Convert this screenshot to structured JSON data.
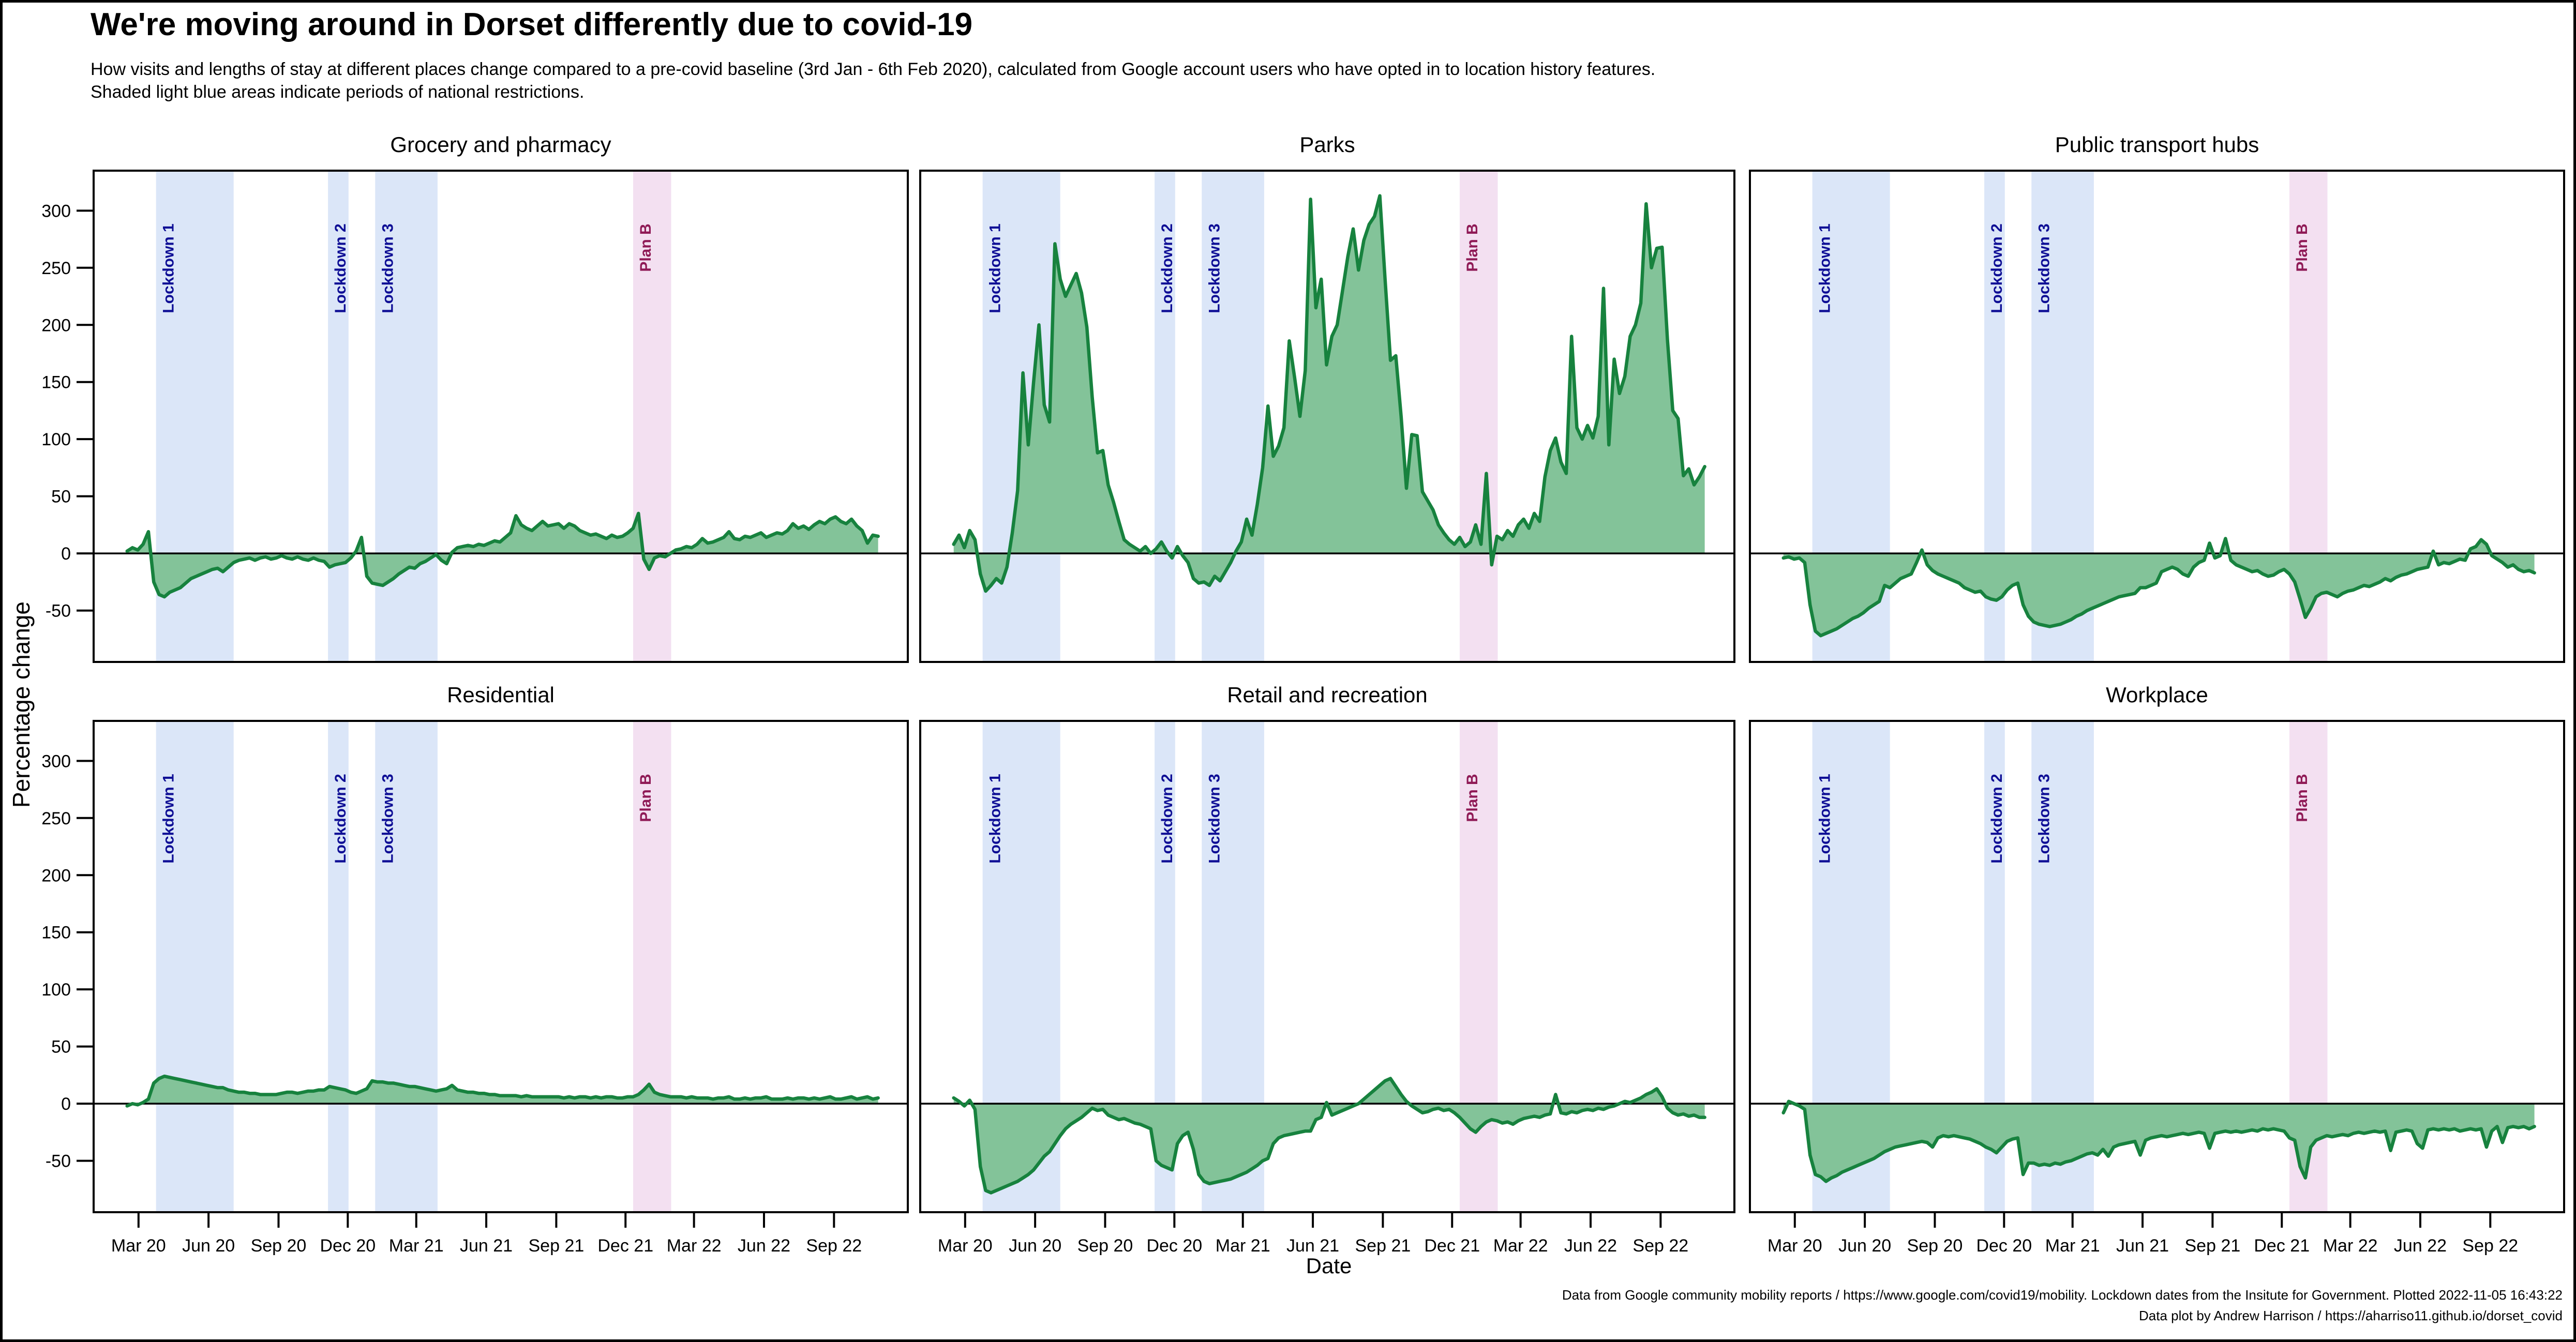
{
  "header": {
    "title": "We're moving around in Dorset differently due to covid-19",
    "subtitle_line1": "How visits and lengths of stay at different places change compared to a pre-covid baseline (3rd Jan - 6th Feb 2020), calculated from Google account users who have opted in to location history features.",
    "subtitle_line2": "Shaded light blue areas indicate periods of national restrictions."
  },
  "axes": {
    "y_label": "Percentage change",
    "x_label": "Date",
    "y_ticks": [
      300,
      250,
      200,
      150,
      100,
      50,
      0,
      -50
    ],
    "y_domain": [
      -95,
      335
    ],
    "x_domain_days": [
      -44,
      1026
    ],
    "x_ticks": [
      {
        "label": "Mar 20",
        "day": 15
      },
      {
        "label": "Jun 20",
        "day": 107
      },
      {
        "label": "Sep 20",
        "day": 199
      },
      {
        "label": "Dec 20",
        "day": 290
      },
      {
        "label": "Mar 21",
        "day": 380
      },
      {
        "label": "Jun 21",
        "day": 472
      },
      {
        "label": "Sep 21",
        "day": 564
      },
      {
        "label": "Dec 21",
        "day": 655
      },
      {
        "label": "Mar 22",
        "day": 745
      },
      {
        "label": "Jun 22",
        "day": 837
      },
      {
        "label": "Sep 22",
        "day": 929
      }
    ]
  },
  "bands": [
    {
      "label": "Lockdown 1",
      "start_day": 38,
      "end_day": 140,
      "kind": "lockdown"
    },
    {
      "label": "Lockdown 2",
      "start_day": 264,
      "end_day": 291,
      "kind": "lockdown"
    },
    {
      "label": "Lockdown 3",
      "start_day": 326,
      "end_day": 408,
      "kind": "lockdown"
    },
    {
      "label": "Plan B",
      "start_day": 665,
      "end_day": 715,
      "kind": "planb"
    }
  ],
  "colors": {
    "line": "#17823e",
    "area_fill": "#83c399",
    "band_lockdown": "#dbe6f8",
    "band_planb": "#f3e0f1",
    "lockdown_label": "#0e0e95",
    "planb_label": "#8f1a56",
    "axis": "#000000"
  },
  "footer": {
    "line1": "Data from Google community mobility reports / https://www.google.com/covid19/mobility. Lockdown dates from the Insitute for Government. Plotted 2022-11-05 16:43:22",
    "line2": "Data plot by Andrew Harrison / https://aharriso11.github.io/dorset_covid"
  },
  "chart_data": {
    "type": "area",
    "x_unit": "days since first sample (mid-Feb 2020), axis labelled by month",
    "grid": false,
    "baseline": 0,
    "days": [
      0,
      7,
      14,
      21,
      28,
      35,
      42,
      49,
      56,
      63,
      70,
      77,
      84,
      91,
      98,
      105,
      112,
      119,
      126,
      133,
      140,
      147,
      154,
      161,
      168,
      175,
      182,
      189,
      196,
      203,
      210,
      217,
      224,
      231,
      238,
      245,
      252,
      259,
      266,
      273,
      280,
      287,
      294,
      301,
      308,
      315,
      322,
      329,
      336,
      343,
      350,
      357,
      364,
      371,
      378,
      385,
      392,
      399,
      406,
      413,
      420,
      427,
      434,
      441,
      448,
      455,
      462,
      469,
      476,
      483,
      490,
      497,
      504,
      511,
      518,
      525,
      532,
      539,
      546,
      553,
      560,
      567,
      574,
      581,
      588,
      595,
      602,
      609,
      616,
      623,
      630,
      637,
      644,
      651,
      658,
      665,
      672,
      679,
      686,
      693,
      700,
      707,
      714,
      721,
      728,
      735,
      742,
      749,
      756,
      763,
      770,
      777,
      784,
      791,
      798,
      805,
      812,
      819,
      826,
      833,
      840,
      847,
      854,
      861,
      868,
      875,
      882,
      889,
      896,
      903,
      910,
      917,
      924,
      931,
      938,
      945,
      952,
      959,
      966,
      973,
      980,
      987
    ],
    "panels": [
      {
        "title": "Grocery and pharmacy",
        "values": [
          2,
          5,
          3,
          8,
          19,
          -25,
          -36,
          -38,
          -34,
          -32,
          -30,
          -26,
          -22,
          -20,
          -18,
          -16,
          -14,
          -13,
          -16,
          -12,
          -8,
          -6,
          -5,
          -4,
          -6,
          -4,
          -3,
          -5,
          -4,
          -2,
          -4,
          -5,
          -3,
          -5,
          -6,
          -4,
          -6,
          -7,
          -12,
          -10,
          -9,
          -8,
          -4,
          2,
          14,
          -20,
          -26,
          -27,
          -28,
          -25,
          -22,
          -18,
          -15,
          -12,
          -13,
          -9,
          -7,
          -4,
          -1,
          -6,
          -9,
          1,
          5,
          6,
          7,
          6,
          8,
          7,
          9,
          11,
          10,
          14,
          18,
          33,
          25,
          22,
          20,
          24,
          28,
          24,
          25,
          26,
          22,
          26,
          24,
          20,
          18,
          16,
          17,
          15,
          13,
          16,
          14,
          15,
          18,
          22,
          35,
          -5,
          -14,
          -4,
          -2,
          -3,
          0,
          3,
          4,
          6,
          5,
          8,
          13,
          9,
          10,
          12,
          14,
          19,
          13,
          12,
          15,
          14,
          16,
          18,
          14,
          16,
          18,
          17,
          20,
          26,
          22,
          24,
          21,
          25,
          28,
          26,
          30,
          32,
          28,
          26,
          30,
          24,
          20,
          9,
          16,
          15
        ]
      },
      {
        "title": "Parks",
        "values": [
          8,
          16,
          5,
          20,
          12,
          -18,
          -33,
          -28,
          -22,
          -26,
          -12,
          18,
          55,
          158,
          95,
          150,
          200,
          130,
          115,
          271,
          240,
          225,
          235,
          245,
          228,
          198,
          137,
          88,
          90,
          60,
          45,
          28,
          12,
          8,
          5,
          2,
          6,
          0,
          4,
          10,
          2,
          -4,
          6,
          -2,
          -8,
          -22,
          -26,
          -25,
          -28,
          -20,
          -24,
          -16,
          -8,
          2,
          10,
          30,
          16,
          43,
          75,
          129,
          85,
          94,
          110,
          186,
          154,
          120,
          160,
          310,
          215,
          240,
          165,
          190,
          200,
          230,
          260,
          284,
          248,
          274,
          288,
          295,
          313,
          239,
          169,
          173,
          120,
          57,
          104,
          103,
          54,
          46,
          38,
          25,
          18,
          12,
          8,
          14,
          6,
          10,
          25,
          8,
          70,
          -10,
          15,
          12,
          20,
          15,
          25,
          30,
          22,
          35,
          28,
          67,
          90,
          101,
          80,
          70,
          190,
          110,
          100,
          112,
          101,
          120,
          232,
          95,
          170,
          140,
          155,
          190,
          200,
          219,
          306,
          250,
          267,
          268,
          187,
          125,
          118,
          68,
          74,
          60,
          67,
          76
        ]
      },
      {
        "title": "Public transport hubs",
        "values": [
          -4,
          -3,
          -5,
          -4,
          -8,
          -45,
          -68,
          -72,
          -70,
          -68,
          -66,
          -63,
          -60,
          -57,
          -55,
          -52,
          -48,
          -45,
          -42,
          -28,
          -30,
          -26,
          -22,
          -20,
          -18,
          -8,
          3,
          -10,
          -15,
          -18,
          -20,
          -22,
          -24,
          -26,
          -30,
          -32,
          -34,
          -33,
          -38,
          -40,
          -41,
          -38,
          -32,
          -28,
          -26,
          -45,
          -55,
          -60,
          -62,
          -63,
          -64,
          -63,
          -62,
          -60,
          -58,
          -55,
          -53,
          -50,
          -48,
          -46,
          -44,
          -42,
          -40,
          -38,
          -37,
          -36,
          -35,
          -30,
          -30,
          -28,
          -26,
          -16,
          -14,
          -12,
          -14,
          -18,
          -20,
          -12,
          -8,
          -6,
          9,
          -4,
          -2,
          13,
          -6,
          -10,
          -12,
          -14,
          -16,
          -15,
          -18,
          -20,
          -19,
          -16,
          -14,
          -18,
          -25,
          -40,
          -56,
          -48,
          -38,
          -35,
          -34,
          -36,
          -38,
          -35,
          -33,
          -32,
          -30,
          -28,
          -29,
          -27,
          -25,
          -22,
          -24,
          -21,
          -19,
          -18,
          -16,
          -14,
          -13,
          -12,
          2,
          -10,
          -8,
          -9,
          -7,
          -5,
          -6,
          4,
          6,
          12,
          8,
          -2,
          -5,
          -8,
          -12,
          -10,
          -14,
          -16,
          -15,
          -17
        ]
      },
      {
        "title": "Residential",
        "values": [
          -2,
          0,
          -1,
          1,
          4,
          18,
          22,
          24,
          23,
          22,
          21,
          20,
          19,
          18,
          17,
          16,
          15,
          14,
          14,
          12,
          11,
          10,
          10,
          9,
          9,
          8,
          8,
          8,
          8,
          9,
          10,
          10,
          9,
          10,
          11,
          11,
          12,
          12,
          15,
          14,
          13,
          12,
          10,
          9,
          11,
          13,
          20,
          19,
          19,
          18,
          18,
          17,
          16,
          15,
          15,
          14,
          13,
          12,
          11,
          12,
          13,
          16,
          12,
          11,
          10,
          10,
          9,
          9,
          8,
          8,
          7,
          7,
          7,
          7,
          6,
          7,
          6,
          6,
          6,
          6,
          6,
          6,
          5,
          6,
          5,
          6,
          6,
          5,
          6,
          5,
          6,
          6,
          5,
          5,
          6,
          6,
          8,
          12,
          17,
          10,
          8,
          7,
          6,
          6,
          6,
          5,
          6,
          5,
          5,
          5,
          4,
          5,
          5,
          6,
          4,
          4,
          5,
          4,
          5,
          5,
          6,
          4,
          4,
          4,
          5,
          4,
          5,
          5,
          4,
          5,
          4,
          5,
          6,
          4,
          4,
          5,
          6,
          4,
          5,
          6,
          4,
          5
        ]
      },
      {
        "title": "Retail and recreation",
        "values": [
          5,
          2,
          -2,
          3,
          -5,
          -55,
          -76,
          -78,
          -76,
          -74,
          -72,
          -70,
          -68,
          -65,
          -62,
          -58,
          -52,
          -46,
          -42,
          -35,
          -28,
          -22,
          -18,
          -15,
          -12,
          -8,
          -4,
          -6,
          -5,
          -10,
          -12,
          -14,
          -13,
          -15,
          -17,
          -18,
          -20,
          -22,
          -50,
          -54,
          -56,
          -58,
          -35,
          -28,
          -25,
          -40,
          -62,
          -68,
          -70,
          -69,
          -68,
          -67,
          -66,
          -64,
          -62,
          -60,
          -57,
          -54,
          -50,
          -48,
          -35,
          -30,
          -28,
          -27,
          -26,
          -25,
          -24,
          -24,
          -14,
          -12,
          1,
          -10,
          -8,
          -6,
          -4,
          -2,
          0,
          4,
          8,
          12,
          16,
          20,
          22,
          15,
          8,
          2,
          -2,
          -5,
          -8,
          -7,
          -5,
          -4,
          -6,
          -5,
          -8,
          -12,
          -17,
          -22,
          -25,
          -20,
          -16,
          -14,
          -15,
          -17,
          -16,
          -18,
          -15,
          -13,
          -12,
          -11,
          -12,
          -10,
          -9,
          8,
          -8,
          -9,
          -7,
          -8,
          -6,
          -5,
          -6,
          -4,
          -5,
          -3,
          -2,
          0,
          2,
          1,
          3,
          5,
          8,
          10,
          13,
          6,
          -4,
          -8,
          -10,
          -9,
          -11,
          -10,
          -12,
          -12
        ]
      },
      {
        "title": "Workplace",
        "values": [
          -8,
          2,
          0,
          -2,
          -5,
          -45,
          -62,
          -64,
          -68,
          -65,
          -63,
          -60,
          -58,
          -56,
          -54,
          -52,
          -50,
          -48,
          -45,
          -42,
          -40,
          -38,
          -37,
          -36,
          -35,
          -34,
          -33,
          -34,
          -38,
          -30,
          -28,
          -29,
          -28,
          -29,
          -30,
          -31,
          -33,
          -35,
          -38,
          -40,
          -43,
          -38,
          -33,
          -31,
          -30,
          -62,
          -52,
          -52,
          -54,
          -53,
          -54,
          -52,
          -53,
          -51,
          -50,
          -48,
          -46,
          -44,
          -43,
          -45,
          -40,
          -46,
          -38,
          -36,
          -35,
          -34,
          -33,
          -45,
          -32,
          -30,
          -29,
          -28,
          -29,
          -28,
          -27,
          -26,
          -27,
          -26,
          -25,
          -26,
          -39,
          -26,
          -25,
          -24,
          -25,
          -24,
          -25,
          -24,
          -23,
          -24,
          -22,
          -23,
          -22,
          -23,
          -24,
          -30,
          -32,
          -55,
          -65,
          -38,
          -32,
          -30,
          -28,
          -29,
          -28,
          -27,
          -28,
          -26,
          -25,
          -26,
          -25,
          -24,
          -25,
          -24,
          -41,
          -25,
          -24,
          -23,
          -24,
          -35,
          -39,
          -23,
          -22,
          -23,
          -22,
          -23,
          -22,
          -24,
          -23,
          -22,
          -23,
          -22,
          -38,
          -24,
          -20,
          -34,
          -21,
          -20,
          -21,
          -20,
          -22,
          -20
        ]
      }
    ]
  }
}
